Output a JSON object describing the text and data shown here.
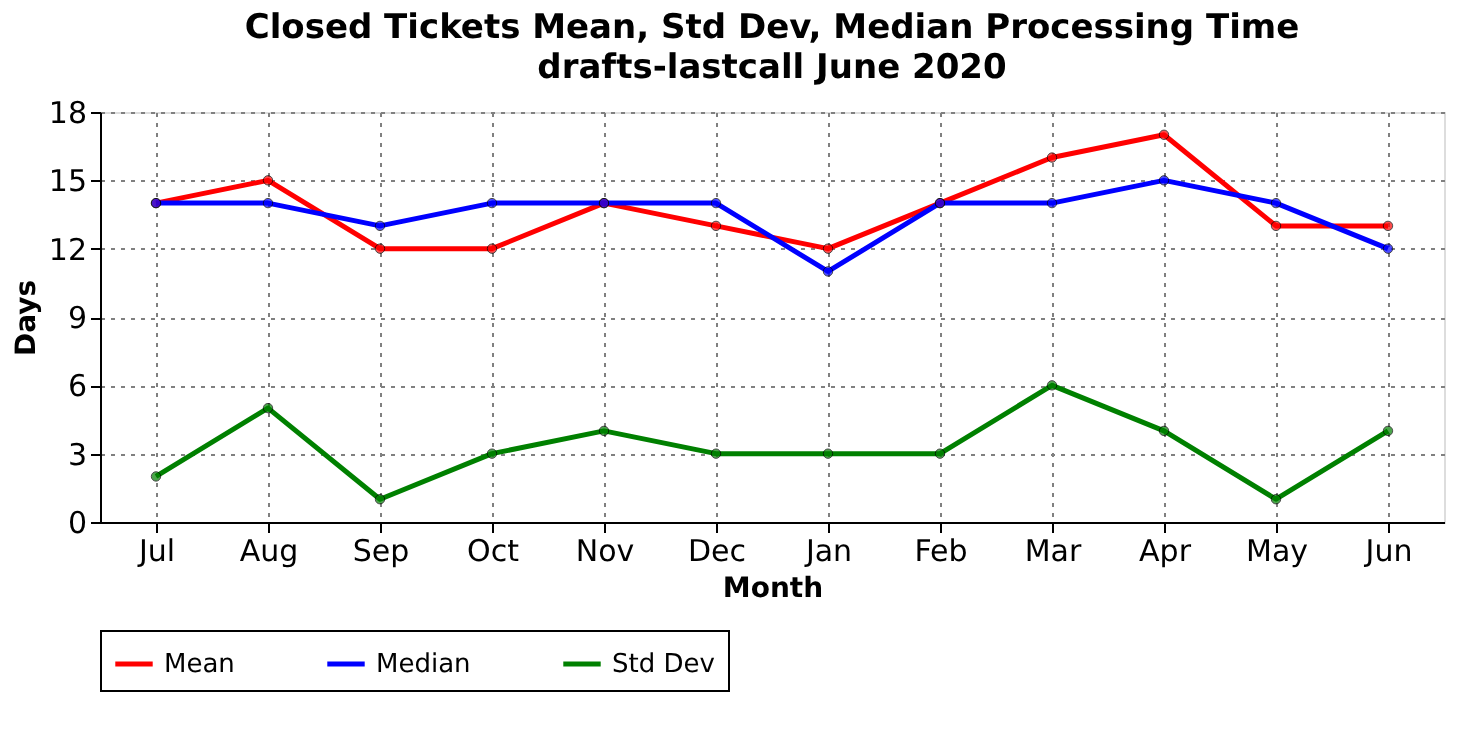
{
  "chart_data": {
    "type": "line",
    "title": "Closed Tickets Mean, Std Dev, Median Processing Time",
    "subtitle": "drafts-lastcall June 2020",
    "xlabel": "Month",
    "ylabel": "Days",
    "categories": [
      "Jul",
      "Aug",
      "Sep",
      "Oct",
      "Nov",
      "Dec",
      "Jan",
      "Feb",
      "Mar",
      "Apr",
      "May",
      "Jun"
    ],
    "series": [
      {
        "name": "Mean",
        "color": "#ff0000",
        "values": [
          14,
          15,
          12,
          12,
          14,
          13,
          12,
          14,
          16,
          17,
          13,
          13
        ]
      },
      {
        "name": "Median",
        "color": "#0000ff",
        "values": [
          14,
          14,
          13,
          14,
          14,
          14,
          11,
          14,
          14,
          15,
          14,
          12
        ]
      },
      {
        "name": "Std Dev",
        "color": "#008000",
        "values": [
          2,
          5,
          1,
          3,
          4,
          3,
          3,
          3,
          6,
          4,
          1,
          4
        ]
      }
    ],
    "ylim": [
      0,
      18
    ],
    "yticks": [
      0,
      3,
      6,
      9,
      12,
      15,
      18
    ],
    "grid": true,
    "legend": "bottom",
    "marker": "circle",
    "line_style": "solid"
  }
}
